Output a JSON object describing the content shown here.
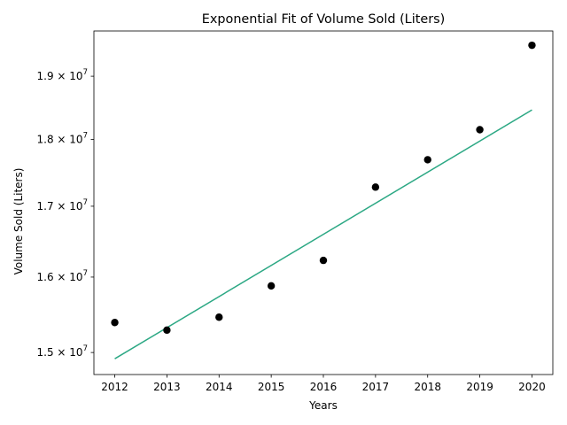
{
  "chart_data": {
    "type": "scatter",
    "title": "Exponential Fit of Volume Sold (Liters)",
    "xlabel": "Years",
    "ylabel": "Volume Sold (Liters)",
    "x_ticks": [
      2012,
      2013,
      2014,
      2015,
      2016,
      2017,
      2018,
      2019,
      2020
    ],
    "y_scale": "log",
    "y_ticks": [
      {
        "value": 15000000,
        "mantissa": "1.5",
        "base": "10",
        "exp": "7"
      },
      {
        "value": 16000000,
        "mantissa": "1.6",
        "base": "10",
        "exp": "7"
      },
      {
        "value": 17000000,
        "mantissa": "1.7",
        "base": "10",
        "exp": "7"
      },
      {
        "value": 18000000,
        "mantissa": "1.8",
        "base": "10",
        "exp": "7"
      },
      {
        "value": 19000000,
        "mantissa": "1.9",
        "base": "10",
        "exp": "7"
      }
    ],
    "xlim": [
      2011.6,
      2020.4
    ],
    "ylim": [
      14720000,
      19750000
    ],
    "grid": false,
    "legend": "none",
    "series": [
      {
        "type": "scatter",
        "color": "#000000",
        "x": [
          2012,
          2013,
          2014,
          2015,
          2016,
          2017,
          2018,
          2019,
          2020
        ],
        "y": [
          15390000,
          15290000,
          15460000,
          15880000,
          16230000,
          17280000,
          17690000,
          18150000,
          19510000
        ]
      },
      {
        "type": "line",
        "color": "#2ca884",
        "x": [
          2012,
          2020
        ],
        "y": [
          14920000,
          18460000
        ]
      }
    ]
  }
}
